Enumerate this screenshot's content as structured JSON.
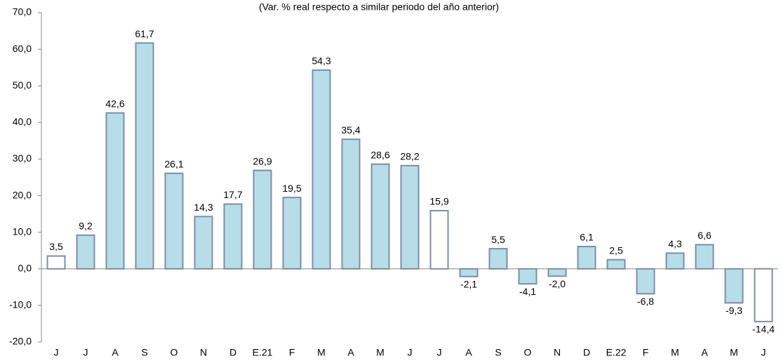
{
  "chart_data": {
    "type": "bar",
    "subtitle": "(Var. % real respecto a similar periodo del año anterior)",
    "categories": [
      "J",
      "J",
      "A",
      "S",
      "O",
      "N",
      "D",
      "E.21",
      "F",
      "M",
      "A",
      "M",
      "J",
      "J",
      "A",
      "S",
      "O",
      "N",
      "D",
      "E.22",
      "F",
      "M",
      "A",
      "M",
      "J"
    ],
    "values": [
      3.5,
      9.2,
      42.6,
      61.7,
      26.1,
      14.3,
      17.7,
      26.9,
      19.5,
      54.3,
      35.4,
      28.6,
      28.2,
      15.9,
      -2.1,
      5.5,
      -4.1,
      -2.0,
      6.1,
      2.5,
      -6.8,
      4.3,
      6.6,
      -9.3,
      -14.4
    ],
    "value_labels": [
      "3,5",
      "9,2",
      "42,6",
      "61,7",
      "26,1",
      "14,3",
      "17,7",
      "26,9",
      "19,5",
      "54,3",
      "35,4",
      "28,6",
      "28,2",
      "15,9",
      "-2,1",
      "5,5",
      "-4,1",
      "-2,0",
      "6,1",
      "2,5",
      "-6,8",
      "4,3",
      "6,6",
      "-9,3",
      "-14,4"
    ],
    "colors": [
      "#ffffff",
      "#b7dde8",
      "#b7dde8",
      "#b7dde8",
      "#b7dde8",
      "#b7dde8",
      "#b7dde8",
      "#b7dde8",
      "#b7dde8",
      "#b7dde8",
      "#b7dde8",
      "#b7dde8",
      "#b7dde8",
      "#ffffff",
      "#b7dde8",
      "#b7dde8",
      "#b7dde8",
      "#b7dde8",
      "#b7dde8",
      "#b7dde8",
      "#b7dde8",
      "#b7dde8",
      "#b7dde8",
      "#b7dde8",
      "#ffffff"
    ],
    "edge_color": "#7d8ea8",
    "ylim": [
      -20,
      70
    ],
    "yticks": [
      {
        "value": -20,
        "label": "-20,0"
      },
      {
        "value": -10,
        "label": "-10,0"
      },
      {
        "value": 0,
        "label": "0,0"
      },
      {
        "value": 10,
        "label": "10,0"
      },
      {
        "value": 20,
        "label": "20,0"
      },
      {
        "value": 30,
        "label": "30,0"
      },
      {
        "value": 40,
        "label": "40,0"
      },
      {
        "value": 50,
        "label": "50,0"
      },
      {
        "value": 60,
        "label": "60,0"
      },
      {
        "value": 70,
        "label": "70,0"
      }
    ],
    "grid": false
  }
}
